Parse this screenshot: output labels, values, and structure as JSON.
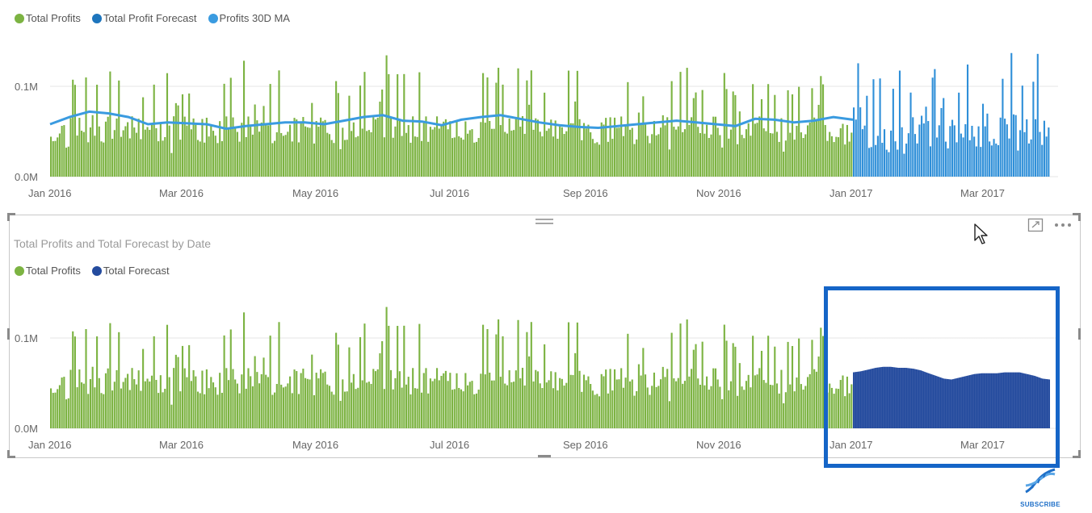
{
  "chart_data": [
    {
      "type": "bar",
      "x_axis": "date",
      "series": [
        {
          "name": "Total Profits",
          "color": "#7cb342",
          "period": "Jan 2016 – Dec 2016"
        },
        {
          "name": "Total Profit Forecast",
          "color": "#1d75bd",
          "period": "Jan 2017 – Apr 2017"
        },
        {
          "name": "Profits 30D MA",
          "color": "#3a9be0",
          "type": "line",
          "values": [
            58000,
            66000,
            72000,
            70000,
            66000,
            58000,
            60000,
            59000,
            58000,
            53000,
            56000,
            58000,
            60000,
            60000,
            58000,
            62000,
            66000,
            68000,
            62000,
            61000,
            57000,
            63000,
            66000,
            68000,
            64000,
            60000,
            57000,
            55000,
            54000,
            56000,
            58000,
            60000,
            62000,
            60000,
            58000,
            56000,
            64000,
            63000,
            60000,
            62000,
            66000,
            63000
          ]
        }
      ],
      "x_ticks": [
        "Jan 2016",
        "Mar 2016",
        "May 2016",
        "Jul 2016",
        "Sep 2016",
        "Nov 2016",
        "Jan 2017",
        "Mar 2017"
      ],
      "y_ticks": [
        "0.0M",
        "0.1M"
      ],
      "ylim": [
        0,
        140000
      ],
      "legend": [
        "Total Profits",
        "Total Profit Forecast",
        "Profits 30D MA"
      ],
      "legend_position": "top-left",
      "grid": true
    },
    {
      "type": "bar",
      "title": "Total Profits and Total Forecast by Date",
      "x_axis": "date",
      "series": [
        {
          "name": "Total Profits",
          "color": "#7cb342",
          "period": "Jan 2016 – Dec 2016"
        },
        {
          "name": "Total Forecast",
          "color": "#244b9e",
          "period": "Jan 2017 – Apr 2017",
          "values": [
            62000,
            63000,
            65000,
            67000,
            68000,
            68000,
            67000,
            67000,
            66000,
            64000,
            61000,
            58000,
            55000,
            54000,
            56000,
            58000,
            60000,
            61000,
            61000,
            61000,
            62000,
            62000,
            62000,
            60000,
            58000,
            55000,
            54000
          ]
        }
      ],
      "x_ticks": [
        "Jan 2016",
        "Mar 2016",
        "May 2016",
        "Jul 2016",
        "Sep 2016",
        "Nov 2016",
        "Jan 2017",
        "Mar 2017"
      ],
      "y_ticks": [
        "0.0M",
        "0.1M"
      ],
      "ylim": [
        0,
        140000
      ],
      "legend": [
        "Total Profits",
        "Total Forecast"
      ],
      "legend_position": "top-left",
      "grid": true
    }
  ],
  "chart1": {
    "legend": [
      {
        "label": "Total Profits",
        "color": "#7cb342"
      },
      {
        "label": "Total Profit Forecast",
        "color": "#1d75bd"
      },
      {
        "label": "Profits 30D MA",
        "color": "#3a9be0"
      }
    ]
  },
  "chart2": {
    "title": "Total Profits and Total Forecast by Date",
    "legend": [
      {
        "label": "Total Profits",
        "color": "#7cb342"
      },
      {
        "label": "Total Forecast",
        "color": "#244b9e"
      }
    ]
  },
  "axis": {
    "x_ticks": [
      "Jan 2016",
      "Mar 2016",
      "May 2016",
      "Jul 2016",
      "Sep 2016",
      "Nov 2016",
      "Jan 2017",
      "Mar 2017"
    ],
    "y_top": "0.1M",
    "y_bottom": "0.0M"
  },
  "highlight_color": "#1565c7",
  "subscribe_label": "SUBSCRIBE",
  "icons": [
    "focus-mode-icon",
    "more-options-icon",
    "drag-handle-icon",
    "dna-icon",
    "mouse-pointer-icon"
  ]
}
